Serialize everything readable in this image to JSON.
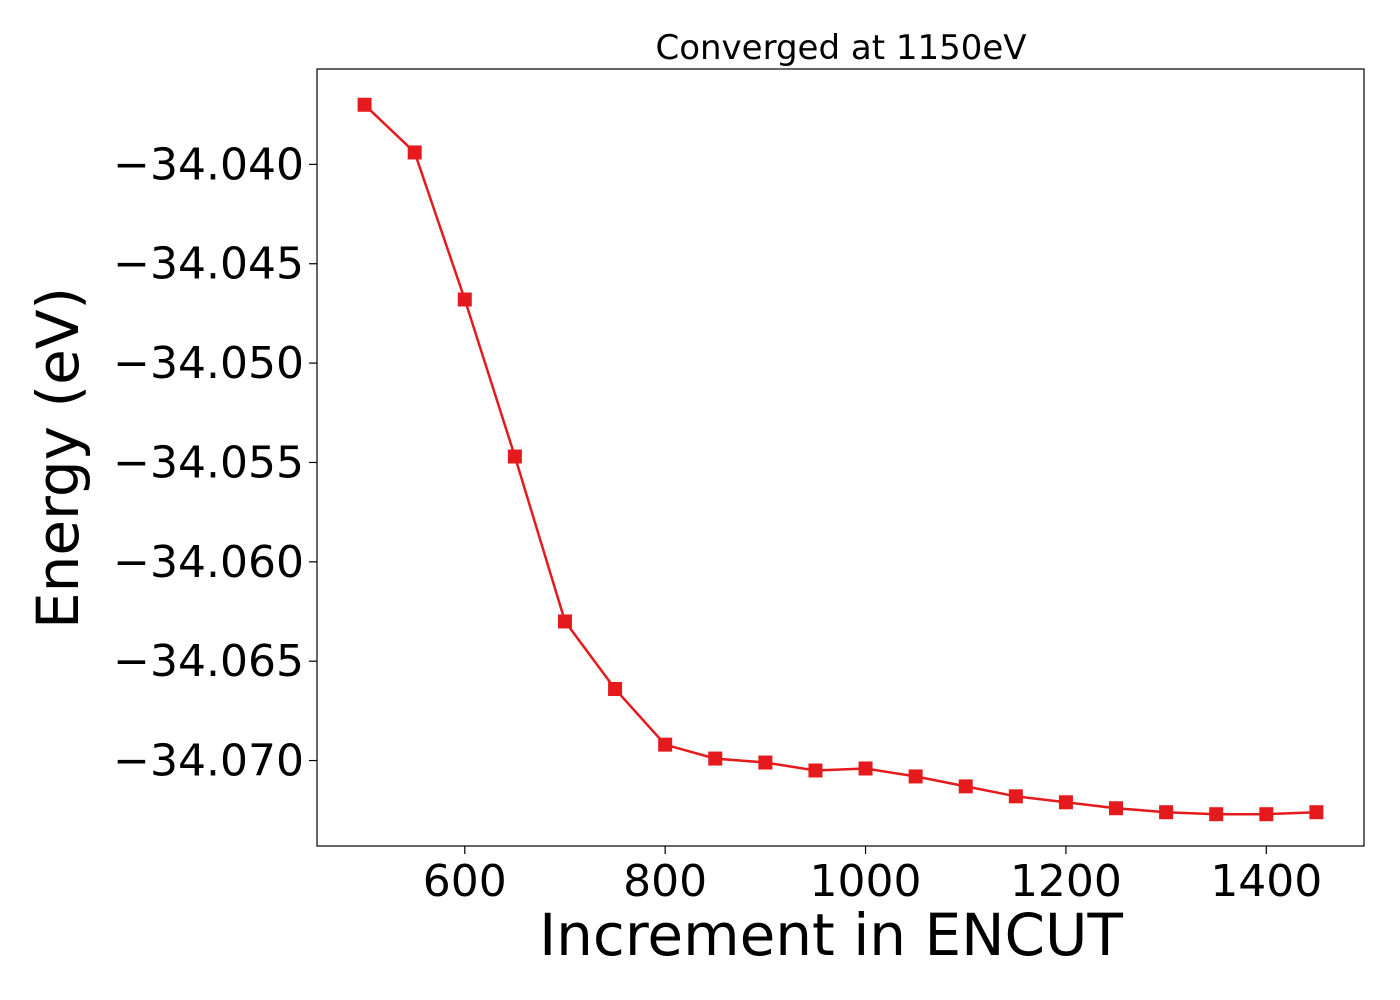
{
  "chart_data": {
    "type": "line",
    "title": "Converged at 1150eV",
    "xlabel": "Increment in ENCUT",
    "ylabel": "Energy (eV)",
    "xlim": [
      452.5,
      1497.5
    ],
    "ylim": [
      -34.0743,
      -34.0352
    ],
    "x_ticks": [
      600,
      800,
      1000,
      1200,
      1400
    ],
    "x_tick_labels": [
      "600",
      "800",
      "1000",
      "1200",
      "1400"
    ],
    "y_ticks": [
      -34.04,
      -34.045,
      -34.05,
      -34.055,
      -34.06,
      -34.065,
      -34.07
    ],
    "y_tick_labels": [
      "−34.040",
      "−34.045",
      "−34.050",
      "−34.055",
      "−34.060",
      "−34.065",
      "−34.070"
    ],
    "grid": false,
    "series": [
      {
        "color": "#e41a1c",
        "marker": "square",
        "x": [
          500,
          550,
          600,
          650,
          700,
          750,
          800,
          850,
          900,
          950,
          1000,
          1050,
          1100,
          1150,
          1200,
          1250,
          1300,
          1350,
          1400,
          1450
        ],
        "y": [
          -34.037,
          -34.0394,
          -34.0468,
          -34.0547,
          -34.063,
          -34.0664,
          -34.0692,
          -34.0699,
          -34.0701,
          -34.0705,
          -34.0704,
          -34.0708,
          -34.0713,
          -34.0718,
          -34.0721,
          -34.0724,
          -34.0726,
          -34.0727,
          -34.0727,
          -34.0726
        ]
      }
    ]
  }
}
